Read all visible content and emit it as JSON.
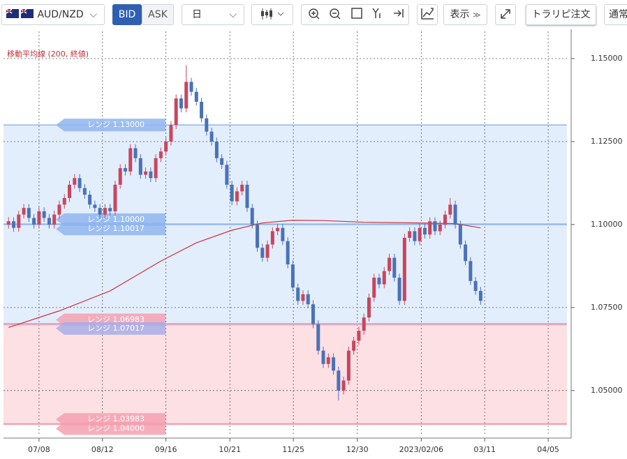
{
  "toolbar": {
    "pair": "AUD/NZD",
    "bid": "BID",
    "ask": "ASK",
    "period": "日",
    "display": "表示",
    "trarip": "トラリピ注文",
    "normal": "通常"
  },
  "chart_data": {
    "type": "candlestick",
    "annotation": "移動平均線 (200, 終値)",
    "ylim": [
      1.0363,
      1.1582
    ],
    "yticks": [
      {
        "value": 1.05,
        "label": "1.05000"
      },
      {
        "value": 1.075,
        "label": "1.07500"
      },
      {
        "value": 1.1,
        "label": "1.10000"
      },
      {
        "value": 1.125,
        "label": "1.12500"
      },
      {
        "value": 1.15,
        "label": "1.15000"
      }
    ],
    "xlim": [
      -1,
      110
    ],
    "xticks": [
      {
        "value": 6.0,
        "label": "07/08"
      },
      {
        "value": 18.5,
        "label": "08/12"
      },
      {
        "value": 31.0,
        "label": "09/16"
      },
      {
        "value": 43.6,
        "label": "10/21"
      },
      {
        "value": 56.1,
        "label": "11/25"
      },
      {
        "value": 68.7,
        "label": "12/30"
      },
      {
        "value": 81.3,
        "label": "2023/02/06"
      },
      {
        "value": 93.8,
        "label": "03/11"
      },
      {
        "value": 106.3,
        "label": "04/05"
      }
    ],
    "grid": true,
    "up_color": "#c8465e",
    "down_color": "#4a72b8",
    "candles": [
      [
        1.1,
        1.1022,
        1.0988,
        1.101
      ],
      [
        1.101,
        1.1022,
        1.0978,
        1.099
      ],
      [
        1.099,
        1.1042,
        1.0978,
        1.103
      ],
      [
        1.103,
        1.1062,
        1.1018,
        1.105
      ],
      [
        1.105,
        1.1062,
        1.1008,
        1.102
      ],
      [
        1.102,
        1.1032,
        1.0988,
        1.1
      ],
      [
        1.1,
        1.1052,
        1.0988,
        1.104
      ],
      [
        1.104,
        1.1052,
        1.1008,
        1.102
      ],
      [
        1.102,
        1.1032,
        1.0988,
        1.1
      ],
      [
        1.1,
        1.1042,
        1.0988,
        1.103
      ],
      [
        1.103,
        1.1072,
        1.1018,
        1.106
      ],
      [
        1.106,
        1.1092,
        1.1048,
        1.108
      ],
      [
        1.108,
        1.1132,
        1.1068,
        1.112
      ],
      [
        1.112,
        1.1152,
        1.1108,
        1.114
      ],
      [
        1.114,
        1.1152,
        1.1098,
        1.111
      ],
      [
        1.111,
        1.1122,
        1.1078,
        1.109
      ],
      [
        1.109,
        1.1102,
        1.1048,
        1.106
      ],
      [
        1.106,
        1.1072,
        1.1038,
        1.105
      ],
      [
        1.105,
        1.1062,
        1.1018,
        1.103
      ],
      [
        1.103,
        1.1062,
        1.1018,
        1.105
      ],
      [
        1.105,
        1.1062,
        1.1028,
        1.104
      ],
      [
        1.104,
        1.1132,
        1.1028,
        1.112
      ],
      [
        1.112,
        1.1182,
        1.1108,
        1.117
      ],
      [
        1.117,
        1.1182,
        1.1148,
        1.116
      ],
      [
        1.116,
        1.1242,
        1.1148,
        1.123
      ],
      [
        1.123,
        1.1242,
        1.1188,
        1.12
      ],
      [
        1.12,
        1.1212,
        1.1138,
        1.115
      ],
      [
        1.115,
        1.1172,
        1.1138,
        1.116
      ],
      [
        1.116,
        1.1172,
        1.1128,
        1.114
      ],
      [
        1.114,
        1.1212,
        1.1128,
        1.12
      ],
      [
        1.12,
        1.1232,
        1.1188,
        1.122
      ],
      [
        1.122,
        1.1262,
        1.1208,
        1.125
      ],
      [
        1.125,
        1.1312,
        1.1238,
        1.13
      ],
      [
        1.13,
        1.1392,
        1.1288,
        1.138
      ],
      [
        1.138,
        1.1392,
        1.1338,
        1.135
      ],
      [
        1.135,
        1.148,
        1.1338,
        1.143
      ],
      [
        1.143,
        1.1442,
        1.1388,
        1.14
      ],
      [
        1.14,
        1.1412,
        1.1358,
        1.137
      ],
      [
        1.137,
        1.1382,
        1.1308,
        1.132
      ],
      [
        1.132,
        1.1332,
        1.1268,
        1.128
      ],
      [
        1.128,
        1.1292,
        1.1238,
        1.125
      ],
      [
        1.125,
        1.1262,
        1.1188,
        1.12
      ],
      [
        1.12,
        1.1212,
        1.1168,
        1.118
      ],
      [
        1.118,
        1.1192,
        1.1108,
        1.112
      ],
      [
        1.112,
        1.1132,
        1.1058,
        1.107
      ],
      [
        1.107,
        1.1112,
        1.1058,
        1.11
      ],
      [
        1.11,
        1.1132,
        1.1088,
        1.112
      ],
      [
        1.112,
        1.1132,
        1.1038,
        1.105
      ],
      [
        1.105,
        1.1062,
        1.0988,
        1.1
      ],
      [
        1.1,
        1.1012,
        1.0918,
        1.093
      ],
      [
        1.093,
        1.0942,
        1.0888,
        1.09
      ],
      [
        1.09,
        1.0952,
        1.0888,
        1.094
      ],
      [
        1.094,
        1.0992,
        1.0928,
        1.098
      ],
      [
        1.098,
        1.1002,
        1.0968,
        1.099
      ],
      [
        1.099,
        1.1002,
        1.0938,
        1.095
      ],
      [
        1.095,
        1.0962,
        1.0868,
        1.088
      ],
      [
        1.088,
        1.0892,
        1.0798,
        1.081
      ],
      [
        1.081,
        1.0822,
        1.0758,
        1.077
      ],
      [
        1.077,
        1.0802,
        1.0758,
        1.079
      ],
      [
        1.079,
        1.0802,
        1.0748,
        1.076
      ],
      [
        1.076,
        1.0772,
        1.0688,
        1.07
      ],
      [
        1.07,
        1.0712,
        1.0608,
        1.062
      ],
      [
        1.062,
        1.0632,
        1.0568,
        1.058
      ],
      [
        1.058,
        1.0612,
        1.0568,
        1.06
      ],
      [
        1.06,
        1.0612,
        1.0548,
        1.056
      ],
      [
        1.056,
        1.0572,
        1.047,
        1.05
      ],
      [
        1.05,
        1.0542,
        1.0488,
        1.053
      ],
      [
        1.053,
        1.0632,
        1.0518,
        1.062
      ],
      [
        1.062,
        1.0662,
        1.0608,
        1.065
      ],
      [
        1.065,
        1.0692,
        1.0638,
        1.068
      ],
      [
        1.068,
        1.0732,
        1.0668,
        1.072
      ],
      [
        1.072,
        1.0792,
        1.0708,
        1.078
      ],
      [
        1.078,
        1.0852,
        1.0768,
        1.084
      ],
      [
        1.084,
        1.0852,
        1.0808,
        1.082
      ],
      [
        1.082,
        1.0872,
        1.0808,
        1.086
      ],
      [
        1.086,
        1.0912,
        1.0848,
        1.09
      ],
      [
        1.09,
        1.0912,
        1.0828,
        1.084
      ],
      [
        1.084,
        1.0852,
        1.0758,
        1.077
      ],
      [
        1.077,
        1.0972,
        1.0758,
        1.096
      ],
      [
        1.096,
        1.0992,
        1.0948,
        1.098
      ],
      [
        1.098,
        1.0992,
        1.0938,
        1.095
      ],
      [
        1.095,
        1.1002,
        1.0938,
        1.099
      ],
      [
        1.099,
        1.1002,
        1.0958,
        1.097
      ],
      [
        1.097,
        1.1022,
        1.0958,
        1.101
      ],
      [
        1.101,
        1.1022,
        1.0968,
        1.098
      ],
      [
        1.098,
        1.1012,
        1.0968,
        1.1
      ],
      [
        1.1,
        1.1042,
        1.0988,
        1.103
      ],
      [
        1.103,
        1.108,
        1.1018,
        1.106
      ],
      [
        1.106,
        1.1072,
        1.0988,
        1.1
      ],
      [
        1.1,
        1.1012,
        1.0928,
        1.094
      ],
      [
        1.094,
        1.0952,
        1.0878,
        1.089
      ],
      [
        1.089,
        1.0902,
        1.0818,
        1.083
      ],
      [
        1.083,
        1.0842,
        1.0788,
        1.08
      ],
      [
        1.08,
        1.0812,
        1.0758,
        1.077
      ]
    ],
    "moving_average": {
      "color": "#d0303c",
      "x": [
        0,
        10,
        20,
        30,
        37,
        44,
        50,
        56,
        62,
        70,
        80,
        88,
        93
      ],
      "values": [
        1.069,
        1.074,
        1.08,
        1.089,
        1.0945,
        1.0983,
        1.1005,
        1.1013,
        1.1012,
        1.1007,
        1.1005,
        1.1003,
        1.099
      ]
    },
    "range_lines": [
      {
        "label": "レンジ 1.13000",
        "value": 1.13,
        "color": "#8fb5ee"
      },
      {
        "label": "レンジ 1.10000",
        "value": 1.1,
        "color": "#8fb5ee"
      },
      {
        "label": "レンジ 1.10017",
        "value": 1.10017,
        "color": "#8fb5ee"
      },
      {
        "label": "レンジ 1.06983",
        "value": 1.06983,
        "color": "#f4a0b0"
      },
      {
        "label": "レンジ 1.07017",
        "value": 1.07017,
        "color": "#a8aee8"
      },
      {
        "label": "レンジ 1.03983",
        "value": 1.03983,
        "color": "#f4a0b0"
      },
      {
        "label": "レンジ 1.04000",
        "value": 1.04,
        "color": "#f4a0b0"
      }
    ],
    "bands": [
      {
        "from": 1.07017,
        "to": 1.13,
        "color": "#e3eefc"
      },
      {
        "from": 1.03983,
        "to": 1.06983,
        "color": "#fde0e4"
      }
    ]
  }
}
